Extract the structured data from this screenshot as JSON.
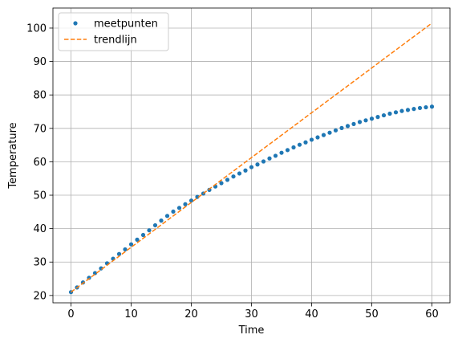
{
  "chart_data": {
    "type": "line",
    "title": "",
    "xlabel": "Time",
    "ylabel": "Temperature",
    "xlim": [
      -3,
      63
    ],
    "ylim": [
      17.8,
      106
    ],
    "xticks": [
      0,
      10,
      20,
      30,
      40,
      50,
      60
    ],
    "yticks": [
      20,
      30,
      40,
      50,
      60,
      70,
      80,
      90,
      100
    ],
    "grid": true,
    "legend_position": "top-left",
    "series": [
      {
        "name": "meetpunten",
        "kind": "scatter",
        "color": "#1f77b4",
        "x": [
          0,
          1,
          2,
          3,
          4,
          5,
          6,
          7,
          8,
          9,
          10,
          11,
          12,
          13,
          14,
          15,
          16,
          17,
          18,
          19,
          20,
          21,
          22,
          23,
          24,
          25,
          26,
          27,
          28,
          29,
          30,
          31,
          32,
          33,
          34,
          35,
          36,
          37,
          38,
          39,
          40,
          41,
          42,
          43,
          44,
          45,
          46,
          47,
          48,
          49,
          50,
          51,
          52,
          53,
          54,
          55,
          56,
          57,
          58,
          59,
          60
        ],
        "y": [
          21.0,
          22.4,
          23.9,
          25.3,
          26.7,
          28.1,
          29.6,
          31.0,
          32.4,
          33.8,
          35.3,
          36.7,
          38.1,
          39.5,
          41.0,
          42.4,
          43.8,
          45.1,
          46.2,
          47.3,
          48.4,
          49.5,
          50.5,
          51.6,
          52.6,
          53.6,
          54.6,
          55.6,
          56.5,
          57.4,
          58.4,
          59.2,
          60.1,
          61.0,
          61.8,
          62.7,
          63.5,
          64.3,
          65.1,
          65.8,
          66.6,
          67.3,
          68.0,
          68.7,
          69.4,
          70.1,
          70.7,
          71.3,
          71.9,
          72.4,
          72.9,
          73.4,
          73.9,
          74.4,
          74.8,
          75.2,
          75.5,
          75.8,
          76.1,
          76.3,
          76.5
        ]
      },
      {
        "name": "trendlijn",
        "kind": "line",
        "dashed": true,
        "color": "#ff7f0e",
        "x": [
          0,
          60
        ],
        "y": [
          21.0,
          101.5
        ]
      }
    ]
  }
}
